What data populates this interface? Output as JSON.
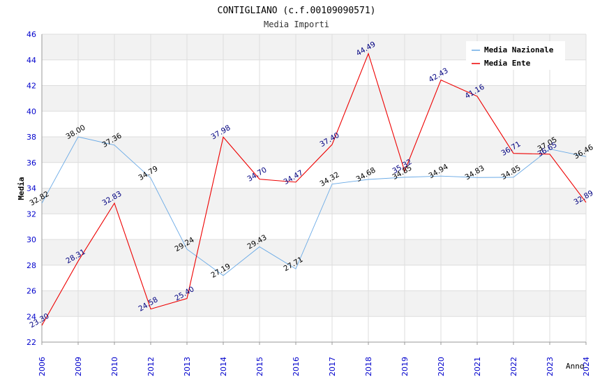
{
  "chart_data": {
    "type": "line",
    "title": "CONTIGLIANO (c.f.00109090571)",
    "subtitle": "Media Importi",
    "xlabel": "Anno",
    "ylabel": "Media",
    "ylim": [
      22,
      46
    ],
    "yticks": [
      "22",
      "24",
      "26",
      "28",
      "30",
      "32",
      "34",
      "36",
      "38",
      "40",
      "42",
      "44",
      "46"
    ],
    "categories": [
      "2006",
      "2009",
      "2010",
      "2012",
      "2013",
      "2014",
      "2015",
      "2016",
      "2017",
      "2018",
      "2019",
      "2020",
      "2021",
      "2022",
      "2023",
      "2024"
    ],
    "grid": true,
    "legend_position": "top-right",
    "series": [
      {
        "name": "Media Nazionale",
        "color": "#6aaae6",
        "label_color": "#000000",
        "values": [
          32.82,
          38.0,
          37.36,
          34.79,
          29.24,
          27.19,
          29.43,
          27.71,
          34.32,
          34.68,
          34.85,
          34.94,
          34.83,
          34.85,
          37.05,
          36.46
        ],
        "labels": [
          "32.82",
          "38.00",
          "37.36",
          "34.79",
          "29.24",
          "27.19",
          "29.43",
          "27.71",
          "34.32",
          "34.68",
          "34.85",
          "34.94",
          "34.83",
          "34.85",
          "37.05",
          "36.46"
        ]
      },
      {
        "name": "Media Ente",
        "color": "#ee0000",
        "label_color": "#000080",
        "values": [
          23.3,
          28.31,
          32.83,
          24.58,
          25.4,
          37.98,
          34.7,
          34.47,
          37.4,
          44.49,
          35.32,
          42.43,
          41.16,
          36.71,
          36.65,
          32.89
        ],
        "labels": [
          "23.30",
          "28.31",
          "32.83",
          "24.58",
          "25.40",
          "37.98",
          "34.70",
          "34.47",
          "37.40",
          "44.49",
          "35.32",
          "42.43",
          "41.16",
          "36.71",
          "36.65",
          "32.89"
        ]
      }
    ]
  }
}
